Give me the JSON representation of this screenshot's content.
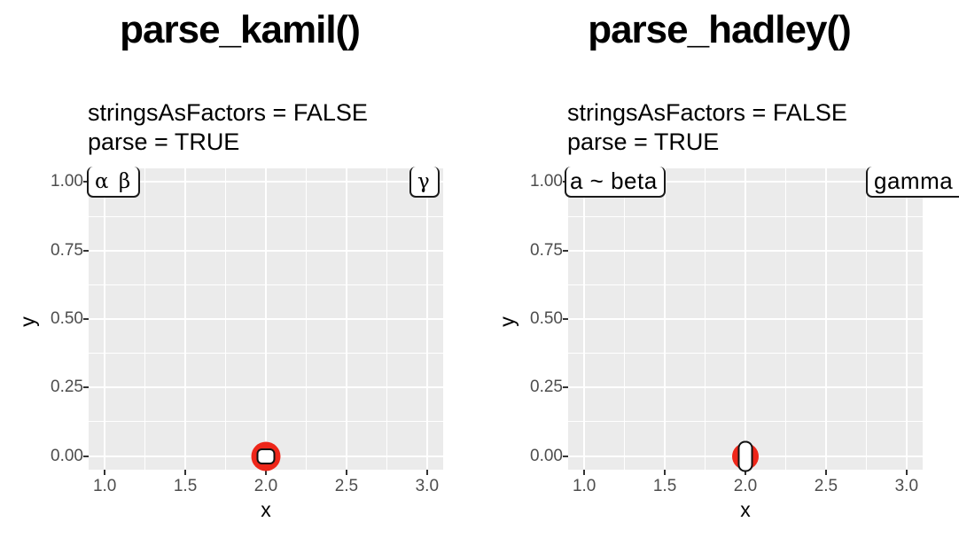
{
  "chart_data": [
    {
      "type": "scatter",
      "title": "parse_kamil()",
      "subtitle": [
        "stringsAsFactors = FALSE",
        "parse = TRUE"
      ],
      "xlabel": "x",
      "ylabel": "y",
      "xlim": [
        0.9,
        3.1
      ],
      "ylim": [
        -0.05,
        1.05
      ],
      "x_breaks": [
        1.0,
        1.5,
        2.0,
        2.5,
        3.0
      ],
      "x_minor": [
        1.25,
        1.75,
        2.25,
        2.75
      ],
      "y_breaks": [
        1.0,
        0.75,
        0.5,
        0.25,
        0.0
      ],
      "y_minor": [
        0.875,
        0.625,
        0.375,
        0.125
      ],
      "x_tick_labels": [
        "1.0",
        "1.5",
        "2.0",
        "2.5",
        "3.0"
      ],
      "y_tick_labels": [
        "1.00",
        "0.75",
        "0.50",
        "0.25",
        "0.00"
      ],
      "grid": "on",
      "legend": "none",
      "panel_bg": "#EBEBEB",
      "grid_color": "#FFFFFF",
      "points": [
        {
          "x": 2,
          "y": 0,
          "fill": "#EE2619",
          "label": "",
          "label_box": "small empty rounded square over red point"
        }
      ],
      "annotations": [
        {
          "x": 1,
          "y": 1,
          "text": "α β",
          "position": "top-left"
        },
        {
          "x": 3,
          "y": 1,
          "text": "γ",
          "position": "top-right"
        }
      ]
    },
    {
      "type": "scatter",
      "title": "parse_hadley()",
      "subtitle": [
        "stringsAsFactors = FALSE",
        "parse = TRUE"
      ],
      "xlabel": "x",
      "ylabel": "y",
      "xlim": [
        0.9,
        3.1
      ],
      "ylim": [
        -0.05,
        1.05
      ],
      "x_breaks": [
        1.0,
        1.5,
        2.0,
        2.5,
        3.0
      ],
      "x_minor": [
        1.25,
        1.75,
        2.25,
        2.75
      ],
      "y_breaks": [
        1.0,
        0.75,
        0.5,
        0.25,
        0.0
      ],
      "y_minor": [
        0.875,
        0.625,
        0.375,
        0.125
      ],
      "x_tick_labels": [
        "1.0",
        "1.5",
        "2.0",
        "2.5",
        "3.0"
      ],
      "y_tick_labels": [
        "1.00",
        "0.75",
        "0.50",
        "0.25",
        "0.00"
      ],
      "grid": "on",
      "legend": "none",
      "panel_bg": "#EBEBEB",
      "grid_color": "#FFFFFF",
      "points": [
        {
          "x": 2,
          "y": 0,
          "fill": "#EE2619",
          "label": "",
          "label_box": "tall narrow empty rounded box over red point"
        }
      ],
      "annotations": [
        {
          "x": 1,
          "y": 1,
          "text": "a ~ beta",
          "position": "top-left"
        },
        {
          "x": 3,
          "y": 1,
          "text": "gamma",
          "position": "top-right",
          "clipped": "right edge"
        }
      ]
    }
  ]
}
